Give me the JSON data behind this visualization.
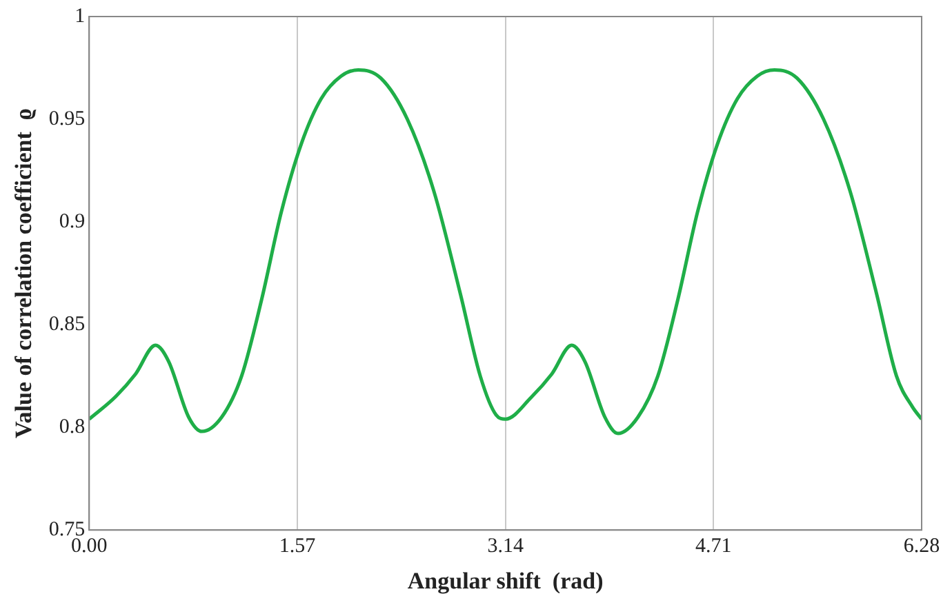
{
  "chart_data": {
    "type": "line",
    "xlabel": "Angular shift  (rad)",
    "ylabel": "Value of correlation coefficient  ϱ",
    "x": [
      0,
      0.2,
      0.35,
      0.5,
      0.6,
      0.75,
      0.85,
      1.0,
      1.15,
      1.3,
      1.45,
      1.6,
      1.75,
      1.9,
      2.03,
      2.2,
      2.4,
      2.6,
      2.8,
      2.95,
      3.07,
      3.14,
      3.34,
      3.49,
      3.64,
      3.74,
      3.89,
      3.99,
      4.14,
      4.29,
      4.44,
      4.59,
      4.74,
      4.89,
      5.04,
      5.17,
      5.34,
      5.54,
      5.74,
      5.94,
      6.09,
      6.21,
      6.28
    ],
    "series": [
      {
        "color": "#1fae48",
        "values": [
          0.804,
          0.815,
          0.826,
          0.84,
          0.832,
          0.805,
          0.798,
          0.805,
          0.825,
          0.862,
          0.905,
          0.938,
          0.96,
          0.971,
          0.974,
          0.97,
          0.95,
          0.915,
          0.865,
          0.825,
          0.806,
          0.804,
          0.815,
          0.826,
          0.84,
          0.832,
          0.805,
          0.797,
          0.805,
          0.825,
          0.862,
          0.905,
          0.938,
          0.96,
          0.971,
          0.974,
          0.97,
          0.95,
          0.915,
          0.865,
          0.825,
          0.81,
          0.804
        ]
      }
    ],
    "xlim": [
      0,
      6.28
    ],
    "xticks": [
      {
        "value": 0,
        "label": "0.00"
      },
      1.57,
      3.14,
      4.71,
      6.28
    ],
    "ylim": [
      0.75,
      1
    ],
    "yticks": [
      0.75,
      0.8,
      0.85,
      0.9,
      0.95,
      1
    ],
    "grid": "x",
    "legend": false,
    "marker": "none",
    "line_style": "solid"
  }
}
